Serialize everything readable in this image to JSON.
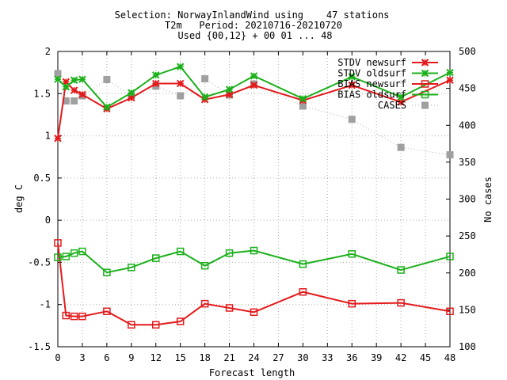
{
  "title_lines": [
    "Selection: NorwayInlandWind using    47 stations",
    "T2m   Period: 20210716-20210720",
    "Used {00,12} + 00 01 ... 48"
  ],
  "chart_data": {
    "type": "line",
    "xlabel": "Forecast length",
    "ylabel": "deg C",
    "y2label": "No cases",
    "xlim": [
      0,
      48
    ],
    "ylim": [
      -1.5,
      2
    ],
    "y2lim": [
      100,
      500
    ],
    "xticks": [
      0,
      3,
      6,
      9,
      12,
      15,
      18,
      21,
      24,
      27,
      30,
      33,
      36,
      39,
      42,
      45,
      48
    ],
    "yticks": [
      -1.5,
      -1,
      -0.5,
      0,
      0.5,
      1,
      1.5,
      2
    ],
    "ytick_labels": [
      "-1.5",
      "-1",
      "-0.5",
      "0",
      "0.5",
      "1",
      "1.5",
      "2"
    ],
    "y2ticks": [
      100,
      150,
      200,
      250,
      300,
      350,
      400,
      450,
      500
    ],
    "grid": true,
    "legend_position": "top-right",
    "series": [
      {
        "name": "STDV newsurf",
        "axis": "left",
        "color": "#e41a1c",
        "marker": "x",
        "x": [
          0,
          1,
          2,
          3,
          6,
          9,
          12,
          15,
          18,
          21,
          24,
          30,
          36,
          42,
          48
        ],
        "values": [
          0.97,
          1.64,
          1.54,
          1.49,
          1.32,
          1.45,
          1.62,
          1.62,
          1.43,
          1.49,
          1.6,
          1.42,
          1.6,
          1.4,
          1.66
        ]
      },
      {
        "name": "STDV oldsurf",
        "axis": "left",
        "color": "#1bb01b",
        "marker": "x",
        "x": [
          0,
          1,
          2,
          3,
          6,
          9,
          12,
          15,
          18,
          21,
          24,
          30,
          36,
          42,
          48
        ],
        "values": [
          1.67,
          1.58,
          1.66,
          1.67,
          1.34,
          1.51,
          1.72,
          1.82,
          1.46,
          1.55,
          1.71,
          1.44,
          1.7,
          1.46,
          1.75
        ]
      },
      {
        "name": "BIAS newsurf",
        "axis": "left",
        "color": "#e41a1c",
        "marker": "square",
        "x": [
          0,
          1,
          2,
          3,
          6,
          9,
          12,
          15,
          18,
          21,
          24,
          30,
          36,
          42,
          48
        ],
        "values": [
          -0.27,
          -1.13,
          -1.14,
          -1.14,
          -1.08,
          -1.24,
          -1.24,
          -1.2,
          -0.99,
          -1.04,
          -1.09,
          -0.85,
          -0.99,
          -0.98,
          -1.08
        ]
      },
      {
        "name": "BIAS oldsurf",
        "axis": "left",
        "color": "#1bb01b",
        "marker": "square",
        "x": [
          0,
          1,
          2,
          3,
          6,
          9,
          12,
          15,
          18,
          21,
          24,
          30,
          36,
          42,
          48
        ],
        "values": [
          -0.44,
          -0.43,
          -0.39,
          -0.37,
          -0.62,
          -0.56,
          -0.45,
          -0.37,
          -0.54,
          -0.39,
          -0.36,
          -0.52,
          -0.4,
          -0.59,
          -0.43
        ]
      },
      {
        "name": "CASES",
        "axis": "right",
        "color": "#a0a0a0",
        "marker": "filled-square",
        "x": [
          0,
          1,
          2,
          3,
          6,
          9,
          12,
          15,
          18,
          21,
          24,
          30,
          36,
          42,
          48
        ],
        "values": [
          470,
          433,
          433,
          440,
          462,
          440,
          453,
          440,
          463,
          441,
          456,
          426,
          408,
          370,
          360
        ]
      }
    ]
  }
}
